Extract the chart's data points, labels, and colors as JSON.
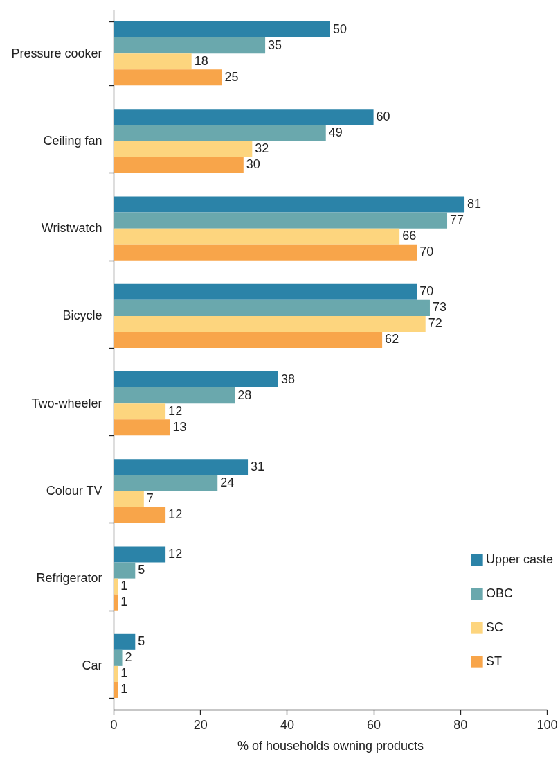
{
  "chart_data": {
    "type": "bar",
    "orientation": "horizontal",
    "xlabel": "% of households owning products",
    "categories": [
      "Pressure cooker",
      "Ceiling fan",
      "Wristwatch",
      "Bicycle",
      "Two-wheeler",
      "Colour TV",
      "Refrigerator",
      "Car"
    ],
    "series": [
      {
        "name": "Upper caste",
        "color": "#2b83a8",
        "values": [
          50,
          60,
          81,
          70,
          38,
          31,
          12,
          5
        ]
      },
      {
        "name": "OBC",
        "color": "#6aa8ad",
        "values": [
          35,
          49,
          77,
          73,
          28,
          24,
          5,
          2
        ]
      },
      {
        "name": "SC",
        "color": "#fdd57e",
        "values": [
          18,
          32,
          66,
          72,
          12,
          7,
          1,
          1
        ]
      },
      {
        "name": "ST",
        "color": "#f8a54a",
        "values": [
          25,
          30,
          70,
          62,
          13,
          12,
          1,
          1
        ]
      }
    ],
    "xlim": [
      0,
      100
    ],
    "xticks": [
      0,
      20,
      40,
      60,
      80,
      100
    ],
    "data_labels": true,
    "legend": "bottom right"
  }
}
